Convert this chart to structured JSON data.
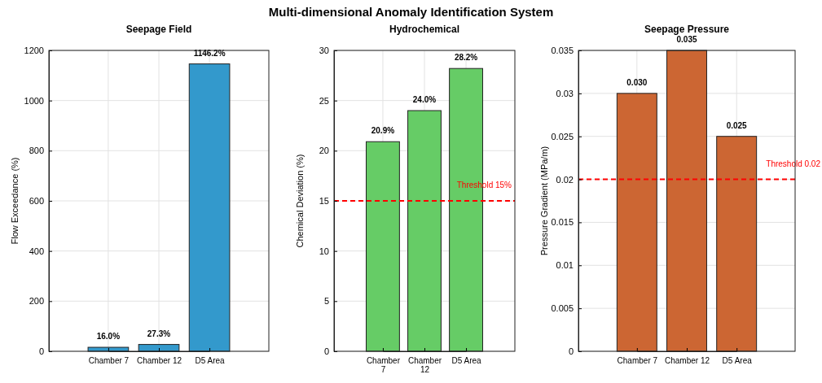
{
  "chart_data": [
    {
      "type": "bar",
      "title": "Seepage Field",
      "ylabel": "Flow Exceedance (%)",
      "annotations": [
        "Multi-dimensional Anomaly Identification System"
      ],
      "categories": [
        "Chamber 7",
        "Chamber 12",
        "D5 Area"
      ],
      "series": [
        {
          "color": "#3399cc",
          "values": [
            16.0,
            27.3,
            1146.2
          ],
          "value_labels": [
            "16.0%",
            "27.3%",
            "1146.2%"
          ]
        }
      ],
      "ylim": [
        0,
        1200
      ],
      "yticks": [
        0,
        200,
        400,
        600,
        800,
        1000,
        1200
      ],
      "grid": true
    },
    {
      "type": "bar",
      "title": "Hydrochemical",
      "ylabel": "Chemical Deviation (%)",
      "categories": [
        "Chamber 7",
        "Chamber 12",
        "D5 Area"
      ],
      "series": [
        {
          "color": "#66cc66",
          "values": [
            20.9,
            24.0,
            28.2
          ],
          "value_labels": [
            "20.9%",
            "24.0%",
            "28.2%"
          ]
        }
      ],
      "ylim": [
        0,
        30
      ],
      "yticks": [
        0,
        5,
        10,
        15,
        20,
        25,
        30
      ],
      "grid": true,
      "ref_lines": [
        {
          "axis": "y",
          "value": 15,
          "label": "Threshold 15%",
          "color": "#ff0000",
          "line_style": "dashed"
        }
      ]
    },
    {
      "type": "bar",
      "title": "Seepage Pressure",
      "ylabel": "Pressure Gradient (MPa/m)",
      "categories": [
        "Chamber 7",
        "Chamber 12",
        "D5 Area"
      ],
      "series": [
        {
          "color": "#cc6633",
          "values": [
            0.03,
            0.035,
            0.025
          ],
          "value_labels": [
            "0.030",
            "0.035",
            "0.025"
          ]
        }
      ],
      "ylim": [
        0,
        0.035
      ],
      "yticks": [
        0,
        0.005,
        0.01,
        0.015,
        0.02,
        0.025,
        0.03,
        0.035
      ],
      "grid": true,
      "ref_lines": [
        {
          "axis": "y",
          "value": 0.02,
          "label": "Threshold 0.02",
          "color": "#ff0000",
          "line_style": "dashed"
        }
      ]
    }
  ]
}
